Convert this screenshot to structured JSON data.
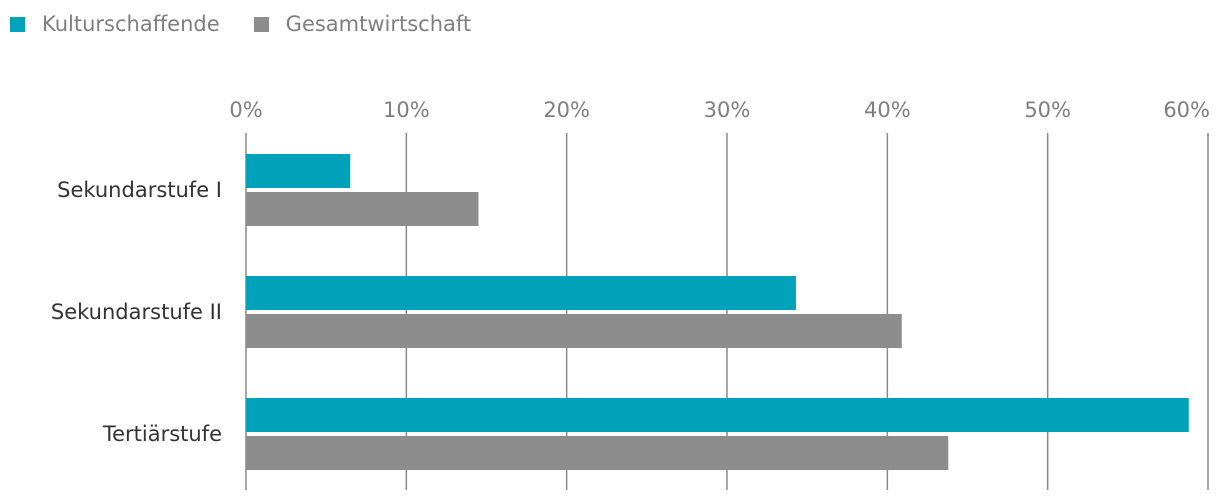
{
  "chart_data": {
    "type": "bar",
    "orientation": "horizontal",
    "categories": [
      "Sekundarstufe I",
      "Sekundarstufe II",
      "Tertiärstufe"
    ],
    "series": [
      {
        "name": "Kulturschaffende",
        "color": "#00a2b9",
        "values": [
          6.5,
          34.3,
          58.8
        ]
      },
      {
        "name": "Gesamtwirtschaft",
        "color": "#8d8d8d",
        "values": [
          14.5,
          40.9,
          43.8
        ]
      }
    ],
    "xticks": [
      "0%",
      "10%",
      "20%",
      "30%",
      "40%",
      "50%",
      "60%"
    ],
    "xlim": [
      0,
      60
    ],
    "grid": true,
    "legend_position": "top-left"
  }
}
